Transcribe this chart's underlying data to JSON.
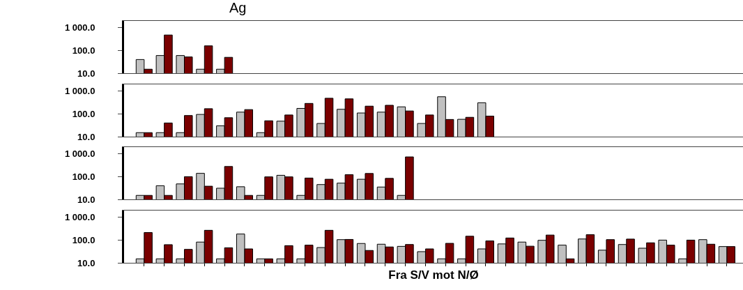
{
  "chart_data": [
    {
      "type": "bar",
      "title": "Ag",
      "categories": [
        null,
        null,
        null,
        null,
        null
      ],
      "series": [
        {
          "color": "#c0c0c0",
          "values": [
            40,
            60,
            60,
            15,
            15
          ]
        },
        {
          "color": "#7a0000",
          "values": [
            15,
            480,
            52,
            160,
            50
          ]
        }
      ],
      "log": true,
      "ylim": [
        10,
        2000
      ],
      "yticks": [
        {
          "value": 10,
          "label": "10.0"
        },
        {
          "value": 100,
          "label": "100.0"
        },
        {
          "value": 1000,
          "label": "1 000.0"
        }
      ],
      "tick_labels": "y",
      "grid": false
    },
    {
      "type": "bar",
      "categories": [
        null,
        null,
        null,
        null,
        null,
        null,
        null,
        null,
        null,
        null,
        null,
        null,
        null,
        null,
        null,
        null,
        null,
        null
      ],
      "series": [
        {
          "color": "#c0c0c0",
          "values": [
            15,
            15,
            15,
            95,
            30,
            120,
            15,
            48,
            175,
            38,
            160,
            110,
            120,
            205,
            38,
            570,
            58,
            310
          ]
        },
        {
          "color": "#7a0000",
          "values": [
            15,
            40,
            85,
            170,
            68,
            155,
            50,
            90,
            290,
            490,
            460,
            220,
            240,
            135,
            90,
            57,
            71,
            80
          ]
        }
      ],
      "log": true,
      "ylim": [
        10,
        2000
      ],
      "yticks": [
        {
          "value": 10,
          "label": "10.0"
        },
        {
          "value": 100,
          "label": "100.0"
        },
        {
          "value": 1000,
          "label": "1 000.0"
        }
      ],
      "tick_labels": "y",
      "grid": false
    },
    {
      "type": "bar",
      "categories": [
        null,
        null,
        null,
        null,
        null,
        null,
        null,
        null,
        null,
        null,
        null,
        null,
        null,
        null
      ],
      "series": [
        {
          "color": "#c0c0c0",
          "values": [
            15,
            40,
            48,
            140,
            31,
            36,
            15,
            115,
            15,
            45,
            52,
            77,
            35,
            15
          ]
        },
        {
          "color": "#7a0000",
          "values": [
            15,
            15,
            100,
            38,
            280,
            15,
            98,
            98,
            87,
            77,
            122,
            138,
            84,
            740
          ]
        }
      ],
      "log": true,
      "ylim": [
        10,
        2000
      ],
      "yticks": [
        {
          "value": 10,
          "label": "10.0"
        },
        {
          "value": 100,
          "label": "100.0"
        },
        {
          "value": 1000,
          "label": "1 000.0"
        }
      ],
      "tick_labels": "y",
      "grid": false
    },
    {
      "type": "bar",
      "xlabel": "Fra S/V mot N/Ø",
      "categories": [
        null,
        null,
        null,
        null,
        null,
        null,
        null,
        null,
        null,
        null,
        null,
        null,
        null,
        null,
        null,
        null,
        null,
        null,
        null,
        null,
        null,
        null,
        null,
        null,
        null,
        null,
        null,
        null,
        null,
        null
      ],
      "series": [
        {
          "color": "#c0c0c0",
          "values": [
            15,
            15,
            15,
            82,
            15,
            185,
            15,
            15,
            15,
            47,
            105,
            71,
            66,
            53,
            31,
            15,
            15,
            41,
            68,
            82,
            98,
            60,
            112,
            36,
            64,
            44,
            100,
            15,
            105,
            52
          ]
        },
        {
          "color": "#7a0000",
          "values": [
            215,
            63,
            39,
            270,
            46,
            41,
            15,
            57,
            60,
            270,
            107,
            35,
            50,
            64,
            41,
            72,
            148,
            92,
            124,
            54,
            167,
            15,
            173,
            105,
            111,
            76,
            60,
            100,
            66,
            52
          ]
        }
      ],
      "log": true,
      "ylim": [
        10,
        2000
      ],
      "yticks": [
        {
          "value": 10,
          "label": "10.0"
        },
        {
          "value": 100,
          "label": "100.0"
        },
        {
          "value": 1000,
          "label": "1 000.0"
        }
      ],
      "tick_labels": "y",
      "grid": false
    }
  ]
}
